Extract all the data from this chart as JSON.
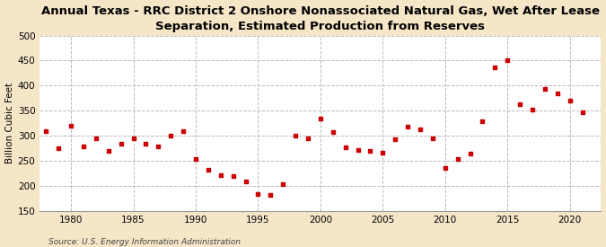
{
  "title": "Annual Texas - RRC District 2 Onshore Nonassociated Natural Gas, Wet After Lease\nSeparation, Estimated Production from Reserves",
  "ylabel": "Billion Cubic Feet",
  "source": "Source: U.S. Energy Information Administration",
  "fig_bg_color": "#f5e6c8",
  "plot_bg_color": "#ffffff",
  "marker_color": "#cc0000",
  "years": [
    1978,
    1979,
    1980,
    1981,
    1982,
    1983,
    1984,
    1985,
    1986,
    1987,
    1988,
    1989,
    1990,
    1991,
    1992,
    1993,
    1994,
    1995,
    1996,
    1997,
    1998,
    1999,
    2000,
    2001,
    2002,
    2003,
    2004,
    2005,
    2006,
    2007,
    2008,
    2009,
    2010,
    2011,
    2012,
    2013,
    2014,
    2015,
    2016,
    2017,
    2018,
    2019,
    2020,
    2021
  ],
  "values": [
    310,
    275,
    320,
    280,
    295,
    270,
    285,
    295,
    285,
    280,
    300,
    310,
    255,
    233,
    222,
    220,
    210,
    185,
    182,
    205,
    300,
    295,
    335,
    308,
    278,
    273,
    270,
    267,
    294,
    318,
    313,
    295,
    237,
    255,
    265,
    330,
    437,
    450,
    363,
    352,
    393,
    385,
    370,
    347
  ],
  "xlim": [
    1977.5,
    2022.5
  ],
  "ylim": [
    150,
    500
  ],
  "xticks": [
    1980,
    1985,
    1990,
    1995,
    2000,
    2005,
    2010,
    2015,
    2020
  ],
  "yticks": [
    150,
    200,
    250,
    300,
    350,
    400,
    450,
    500
  ],
  "title_fontsize": 9.5,
  "ylabel_fontsize": 7.5,
  "tick_fontsize": 7.5,
  "source_fontsize": 6.5
}
